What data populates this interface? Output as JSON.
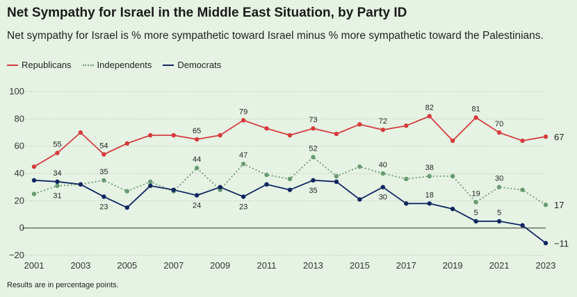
{
  "title": "Net Sympathy for Israel in the Middle East Situation, by Party ID",
  "subtitle": "Net sympathy for Israel is % more sympathetic toward Israel minus % more sympathetic toward the Palestinians.",
  "note": "Results are in percentage points.",
  "colors": {
    "republicans": "#d63b3d",
    "independents": "#6a9a72",
    "democrats": "#0f2560",
    "grid": "#bfcfc0",
    "axis": "#333333"
  },
  "chart_data": {
    "type": "line",
    "title": "Net Sympathy for Israel in the Middle East Situation, by Party ID",
    "xlabel": "",
    "ylabel": "",
    "ylim": [
      -20,
      100
    ],
    "yticks": [
      -20,
      0,
      20,
      40,
      60,
      80,
      100
    ],
    "x": [
      2001,
      2002,
      2003,
      2004,
      2005,
      2006,
      2007,
      2008,
      2009,
      2010,
      2011,
      2012,
      2013,
      2014,
      2015,
      2016,
      2017,
      2018,
      2019,
      2020,
      2021,
      2022,
      2023
    ],
    "xtick_labels": [
      "2001",
      "2003",
      "2005",
      "2007",
      "2009",
      "2011",
      "2013",
      "2015",
      "2017",
      "2019",
      "2021",
      "2023"
    ],
    "series": [
      {
        "name": "Republicans",
        "key": "republicans",
        "style": "solid",
        "values": [
          45,
          55,
          70,
          54,
          62,
          68,
          68,
          65,
          68,
          79,
          73,
          68,
          73,
          69,
          76,
          72,
          75,
          82,
          64,
          81,
          70,
          64,
          67
        ],
        "labels": [
          {
            "i": 1,
            "text": "55",
            "pos": "above"
          },
          {
            "i": 3,
            "text": "54",
            "pos": "above"
          },
          {
            "i": 7,
            "text": "65",
            "pos": "above"
          },
          {
            "i": 9,
            "text": "79",
            "pos": "above"
          },
          {
            "i": 12,
            "text": "73",
            "pos": "above"
          },
          {
            "i": 15,
            "text": "72",
            "pos": "above"
          },
          {
            "i": 17,
            "text": "82",
            "pos": "above"
          },
          {
            "i": 19,
            "text": "81",
            "pos": "above"
          },
          {
            "i": 20,
            "text": "70",
            "pos": "above"
          },
          {
            "i": 22,
            "text": "67",
            "pos": "end"
          }
        ]
      },
      {
        "name": "Independents",
        "key": "independents",
        "style": "dotted",
        "values": [
          25,
          31,
          32,
          35,
          27,
          34,
          27,
          44,
          28,
          47,
          39,
          36,
          52,
          38,
          45,
          40,
          36,
          38,
          38,
          19,
          30,
          28,
          17
        ],
        "labels": [
          {
            "i": 1,
            "text": "31",
            "pos": "below"
          },
          {
            "i": 3,
            "text": "35",
            "pos": "above"
          },
          {
            "i": 7,
            "text": "44",
            "pos": "above"
          },
          {
            "i": 9,
            "text": "47",
            "pos": "above"
          },
          {
            "i": 12,
            "text": "52",
            "pos": "above"
          },
          {
            "i": 15,
            "text": "40",
            "pos": "above"
          },
          {
            "i": 17,
            "text": "38",
            "pos": "above"
          },
          {
            "i": 19,
            "text": "19",
            "pos": "above"
          },
          {
            "i": 20,
            "text": "30",
            "pos": "above"
          },
          {
            "i": 22,
            "text": "17",
            "pos": "end"
          }
        ]
      },
      {
        "name": "Democrats",
        "key": "democrats",
        "style": "solid",
        "values": [
          35,
          34,
          32,
          23,
          15,
          31,
          28,
          24,
          30,
          23,
          32,
          28,
          35,
          34,
          21,
          30,
          18,
          18,
          14,
          5,
          5,
          2,
          -11
        ],
        "labels": [
          {
            "i": 1,
            "text": "34",
            "pos": "above"
          },
          {
            "i": 3,
            "text": "23",
            "pos": "below"
          },
          {
            "i": 7,
            "text": "24",
            "pos": "below"
          },
          {
            "i": 9,
            "text": "23",
            "pos": "below"
          },
          {
            "i": 12,
            "text": "35",
            "pos": "below"
          },
          {
            "i": 15,
            "text": "30",
            "pos": "below"
          },
          {
            "i": 17,
            "text": "18",
            "pos": "above"
          },
          {
            "i": 19,
            "text": "5",
            "pos": "above"
          },
          {
            "i": 20,
            "text": "5",
            "pos": "above"
          },
          {
            "i": 22,
            "text": "−11",
            "pos": "end"
          }
        ]
      }
    ]
  }
}
